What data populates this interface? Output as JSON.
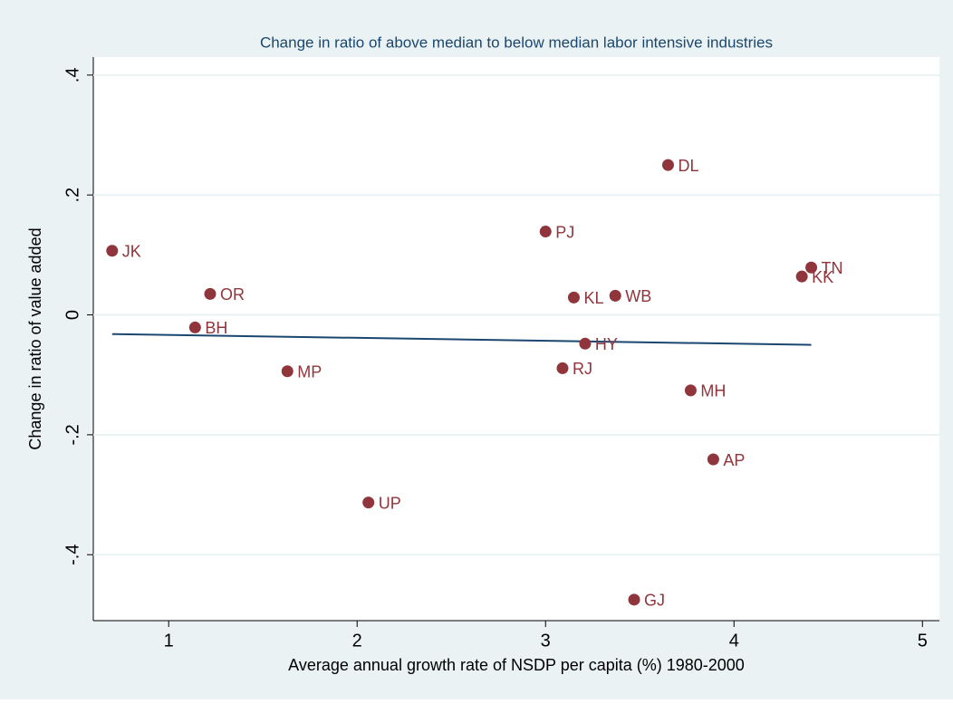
{
  "chart_data": {
    "type": "scatter",
    "title": "Change in ratio of above median to below median labor intensive industries",
    "x_label": "Average annual growth rate of NSDP per capita (%) 1980-2000",
    "y_label": "Change in ratio of value added",
    "labels": [
      "JK",
      "OR",
      "BH",
      "MP",
      "UP",
      "PJ",
      "KL",
      "WB",
      "HY",
      "RJ",
      "DL",
      "MH",
      "AP",
      "GJ",
      "KK",
      "TN"
    ],
    "x": [
      0.7,
      1.22,
      1.14,
      1.63,
      2.06,
      3.0,
      3.15,
      3.37,
      3.21,
      3.09,
      3.65,
      3.77,
      3.89,
      3.47,
      4.36,
      4.41
    ],
    "y": [
      0.107,
      0.035,
      -0.021,
      -0.094,
      -0.313,
      0.139,
      0.029,
      0.032,
      -0.048,
      -0.089,
      0.25,
      -0.126,
      -0.241,
      -0.475,
      0.064,
      0.079
    ],
    "color": "#90353b",
    "fit": {
      "x": [
        0.7,
        4.41
      ],
      "y": [
        -0.032,
        -0.05
      ],
      "color": "#1a476f"
    },
    "xlim": [
      0.6,
      5.09
    ],
    "ylim": [
      -0.51,
      0.43
    ],
    "xticks": [
      1,
      2,
      3,
      4,
      5
    ],
    "yticks": [
      {
        "value": -0.4,
        "label": "-.4"
      },
      {
        "value": -0.2,
        "label": "-.2"
      },
      0,
      {
        "value": 0.2,
        "label": ".2"
      },
      {
        "value": 0.4,
        "label": ".4"
      }
    ],
    "grid": true
  }
}
